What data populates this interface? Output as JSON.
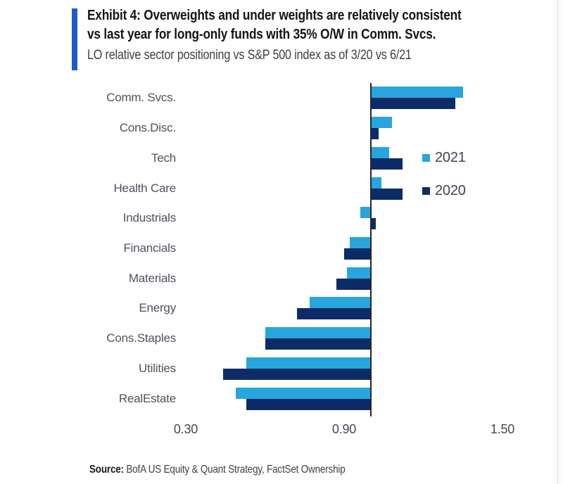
{
  "header": {
    "title_line1": "Exhibit 4: Overweights and under weights are relatively consistent",
    "title_line2": "vs last year for long-only funds with 35% O/W in Comm. Svcs.",
    "subtitle": "LO relative sector positioning vs S&P 500 index as of 3/20 vs 6/21"
  },
  "chart_data": {
    "type": "bar",
    "orientation": "horizontal",
    "baseline": 1.0,
    "categories": [
      "Comm. Svcs.",
      "Cons.Disc.",
      "Tech",
      "Health Care",
      "Industrials",
      "Financials",
      "Materials",
      "Energy",
      "Cons.Staples",
      "Utilities",
      "RealEstate"
    ],
    "series": [
      {
        "name": "2021",
        "color": "#29a5dd",
        "values": [
          1.35,
          1.08,
          1.07,
          1.04,
          0.96,
          0.92,
          0.91,
          0.77,
          0.6,
          0.53,
          0.49
        ]
      },
      {
        "name": "2020",
        "color": "#0d2b67",
        "values": [
          1.32,
          1.03,
          1.12,
          1.12,
          1.02,
          0.9,
          0.87,
          0.72,
          0.6,
          0.44,
          0.53
        ]
      }
    ],
    "x_ticks": [
      0.3,
      0.9,
      1.5
    ],
    "x_tick_labels": [
      "0.30",
      "0.90",
      "1.50"
    ],
    "xlim": [
      0.3,
      1.5
    ],
    "grid": false,
    "legend_position": "upper-right"
  },
  "source": {
    "label": "Source:",
    "text": " BofA US Equity & Quant Strategy, FactSet Ownership"
  },
  "colors": {
    "accent_bar": "#1f5bc5",
    "bar_2021": "#29a5dd",
    "bar_2020": "#0d2b67",
    "axis_line": "#26262e"
  }
}
